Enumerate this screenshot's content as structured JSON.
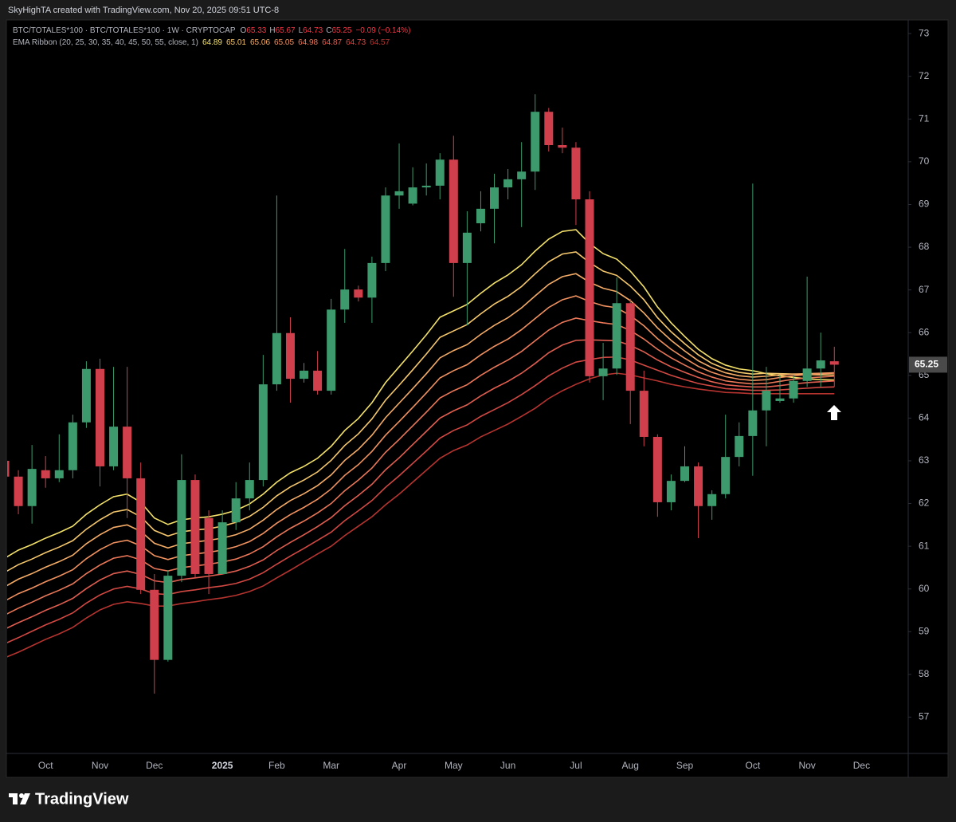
{
  "chart_data": {
    "type": "candlestick",
    "attribution": "SkyHighTA created with TradingView.com, Nov 20, 2025 09:51 UTC-8",
    "symbol": "BTC/TOTALES*100 · BTC/TOTALES*100 · 1W · CRYPTOCAP",
    "ohlc_labels": [
      "O",
      "H",
      "L",
      "C"
    ],
    "change": "−0.09 (−0.14%)",
    "branding": "TradingView",
    "up_color": "#3c9a6c",
    "down_color": "#d0404c",
    "ylim": [
      56.15,
      73.32
    ],
    "yticks": [
      57,
      58,
      59,
      60,
      61,
      62,
      63,
      64,
      65,
      66,
      67,
      68,
      69,
      70,
      71,
      72,
      73
    ],
    "categories": [
      null,
      null,
      null,
      "Oct",
      null,
      null,
      null,
      "Nov",
      null,
      null,
      null,
      "Dec",
      null,
      null,
      null,
      null,
      "2025",
      null,
      null,
      null,
      "Feb",
      null,
      null,
      null,
      "Mar",
      null,
      null,
      null,
      null,
      "Apr",
      null,
      null,
      null,
      "May",
      null,
      null,
      null,
      "Jun",
      null,
      null,
      null,
      null,
      "Jul",
      null,
      null,
      null,
      "Aug",
      null,
      null,
      null,
      "Sep",
      null,
      null,
      null,
      null,
      "Oct",
      null,
      null,
      null,
      "Nov",
      null,
      null,
      null,
      "Dec"
    ],
    "open": [
      63.0,
      62.63,
      61.94,
      62.78,
      62.59,
      62.78,
      63.9,
      65.15,
      62.87,
      63.8,
      62.59,
      59.98,
      58.34,
      60.31,
      62.55,
      61.66,
      60.35,
      61.56,
      62.12,
      62.55,
      64.79,
      65.99,
      64.92,
      65.11,
      64.64,
      66.54,
      67.01,
      66.82,
      67.63,
      69.21,
      69.02,
      69.4,
      69.44,
      70.05,
      67.63,
      68.56,
      68.9,
      69.4,
      69.59,
      69.77,
      71.17,
      70.39,
      70.33,
      69.12,
      64.98,
      65.16,
      66.69,
      64.64,
      63.56,
      62.03,
      62.53,
      62.87,
      61.94,
      62.22,
      63.09,
      63.58,
      64.18,
      64.4,
      64.46,
      64.87,
      65.16,
      65.33,
      null,
      null
    ],
    "high": [
      63.1,
      62.78,
      63.37,
      63.11,
      63.62,
      64.08,
      65.33,
      65.39,
      65.2,
      65.2,
      62.96,
      60.35,
      60.44,
      63.15,
      62.68,
      61.84,
      61.84,
      62.5,
      62.96,
      65.48,
      69.21,
      66.36,
      65.29,
      65.57,
      66.79,
      67.96,
      67.1,
      67.78,
      69.4,
      70.43,
      69.87,
      69.96,
      70.2,
      70.61,
      68.84,
      69.31,
      69.72,
      69.83,
      70.46,
      71.58,
      71.26,
      70.8,
      70.46,
      69.31,
      65.76,
      67.29,
      66.79,
      65.11,
      63.62,
      62.68,
      63.34,
      62.96,
      62.31,
      64.08,
      63.9,
      69.49,
      65.2,
      65.01,
      65.01,
      67.31,
      66.0,
      65.67,
      null,
      null
    ],
    "low": [
      62.5,
      61.75,
      61.53,
      62.37,
      62.5,
      62.59,
      63.77,
      62.4,
      62.78,
      61.66,
      59.88,
      57.55,
      58.3,
      60.16,
      60.26,
      59.88,
      60.35,
      61.38,
      61.84,
      62.4,
      64.64,
      64.36,
      64.83,
      64.55,
      64.55,
      66.23,
      66.73,
      66.23,
      67.44,
      68.9,
      68.98,
      69.21,
      69.12,
      66.84,
      66.17,
      68.37,
      68.09,
      69.12,
      68.47,
      69.34,
      70.24,
      70.2,
      68.52,
      64.83,
      64.42,
      65.01,
      63.86,
      63.34,
      61.69,
      61.84,
      62.5,
      61.19,
      61.62,
      62.12,
      62.87,
      62.65,
      63.34,
      64.36,
      64.36,
      64.73,
      64.73,
      64.73,
      null,
      null
    ],
    "close": [
      62.63,
      61.94,
      62.81,
      62.59,
      62.78,
      63.9,
      65.15,
      62.87,
      63.8,
      62.59,
      59.98,
      58.34,
      60.31,
      62.55,
      60.35,
      60.35,
      61.56,
      62.12,
      62.55,
      64.79,
      65.99,
      64.92,
      65.11,
      64.64,
      66.54,
      67.01,
      66.82,
      67.63,
      69.21,
      69.31,
      69.4,
      69.44,
      70.05,
      67.63,
      68.34,
      68.9,
      69.4,
      69.59,
      69.77,
      71.17,
      70.39,
      70.33,
      69.12,
      64.98,
      65.16,
      66.69,
      64.64,
      63.56,
      62.03,
      62.53,
      62.87,
      61.94,
      62.22,
      63.09,
      63.58,
      64.18,
      64.64,
      64.46,
      64.87,
      65.16,
      65.35,
      65.25,
      null,
      null
    ],
    "ribbon": {
      "label": "EMA Ribbon (20, 25, 30, 35, 40, 45, 50, 55, close, 1)",
      "series": [
        {
          "color": "#f3e16a",
          "values": [
            60.72,
            60.91,
            61.04,
            61.19,
            61.32,
            61.47,
            61.75,
            61.97,
            62.16,
            62.22,
            62.03,
            61.66,
            61.51,
            61.62,
            61.66,
            61.69,
            61.75,
            61.84,
            61.99,
            62.22,
            62.5,
            62.72,
            62.87,
            63.06,
            63.34,
            63.71,
            63.99,
            64.36,
            64.83,
            65.2,
            65.57,
            65.95,
            66.36,
            66.51,
            66.66,
            66.92,
            67.16,
            67.35,
            67.59,
            67.91,
            68.19,
            68.37,
            68.41,
            68.09,
            67.85,
            67.72,
            67.44,
            67.07,
            66.6,
            66.23,
            65.91,
            65.61,
            65.39,
            65.24,
            65.15,
            65.11,
            65.04,
            64.99,
            64.95,
            64.92,
            64.9,
            64.89,
            null,
            null
          ]
        },
        {
          "color": "#f6c86c",
          "values": [
            60.39,
            60.57,
            60.7,
            60.85,
            60.98,
            61.13,
            61.4,
            61.62,
            61.8,
            61.86,
            61.69,
            61.37,
            61.24,
            61.34,
            61.38,
            61.41,
            61.47,
            61.56,
            61.7,
            61.91,
            62.18,
            62.39,
            62.55,
            62.74,
            63.01,
            63.36,
            63.63,
            63.98,
            64.42,
            64.77,
            65.13,
            65.5,
            65.89,
            66.04,
            66.19,
            66.44,
            66.67,
            66.85,
            67.08,
            67.38,
            67.66,
            67.84,
            67.89,
            67.64,
            67.44,
            67.34,
            67.09,
            66.77,
            66.35,
            66.02,
            65.74,
            65.48,
            65.28,
            65.15,
            65.07,
            65.03,
            65.05,
            65.04,
            65.03,
            65.02,
            65.01,
            65.01,
            null,
            null
          ]
        },
        {
          "color": "#f5ac66",
          "values": [
            60.05,
            60.23,
            60.36,
            60.51,
            60.64,
            60.79,
            61.06,
            61.27,
            61.44,
            61.5,
            61.35,
            61.07,
            60.96,
            61.06,
            61.1,
            61.14,
            61.19,
            61.27,
            61.4,
            61.61,
            61.86,
            62.07,
            62.23,
            62.42,
            62.67,
            63.01,
            63.27,
            63.6,
            64.01,
            64.35,
            64.69,
            65.04,
            65.41,
            65.58,
            65.72,
            65.96,
            66.17,
            66.35,
            66.58,
            66.86,
            67.13,
            67.31,
            67.38,
            67.18,
            67.04,
            66.96,
            66.75,
            66.46,
            66.11,
            65.82,
            65.57,
            65.34,
            65.18,
            65.06,
            64.99,
            64.96,
            64.98,
            65.01,
            65.03,
            65.04,
            65.05,
            65.06,
            null,
            null
          ]
        },
        {
          "color": "#f1915f",
          "values": [
            59.72,
            59.89,
            60.02,
            60.17,
            60.3,
            60.45,
            60.71,
            60.92,
            61.08,
            61.14,
            61.01,
            60.78,
            60.69,
            60.78,
            60.82,
            60.86,
            60.91,
            60.99,
            61.11,
            61.3,
            61.54,
            61.74,
            61.91,
            62.1,
            62.34,
            62.66,
            62.91,
            63.22,
            63.6,
            63.92,
            64.25,
            64.59,
            64.94,
            65.11,
            65.25,
            65.48,
            65.68,
            65.85,
            66.07,
            66.33,
            66.59,
            66.77,
            66.86,
            66.73,
            66.63,
            66.58,
            66.4,
            66.16,
            65.86,
            65.61,
            65.4,
            65.21,
            65.07,
            64.97,
            64.91,
            64.88,
            64.9,
            64.95,
            64.99,
            65.02,
            65.04,
            65.05,
            null,
            null
          ]
        },
        {
          "color": "#ea7758",
          "values": [
            59.39,
            59.55,
            59.69,
            59.84,
            59.97,
            60.12,
            60.36,
            60.56,
            60.72,
            60.78,
            60.68,
            60.48,
            60.42,
            60.5,
            60.54,
            60.58,
            60.63,
            60.7,
            60.82,
            60.99,
            61.22,
            61.42,
            61.59,
            61.78,
            62.0,
            62.3,
            62.55,
            62.83,
            63.2,
            63.5,
            63.82,
            64.14,
            64.47,
            64.64,
            64.78,
            65.0,
            65.19,
            65.36,
            65.56,
            65.81,
            66.06,
            66.24,
            66.34,
            66.28,
            66.23,
            66.19,
            66.05,
            65.85,
            65.61,
            65.41,
            65.24,
            65.08,
            64.96,
            64.87,
            64.83,
            64.8,
            64.81,
            64.86,
            64.91,
            64.94,
            64.96,
            64.98,
            null,
            null
          ]
        },
        {
          "color": "#e05e50",
          "values": [
            59.06,
            59.21,
            59.35,
            59.5,
            59.63,
            59.78,
            60.01,
            60.21,
            60.36,
            60.42,
            60.34,
            60.19,
            60.15,
            60.22,
            60.26,
            60.3,
            60.35,
            60.42,
            60.53,
            60.68,
            60.9,
            61.09,
            61.27,
            61.46,
            61.67,
            61.95,
            62.19,
            62.45,
            62.79,
            63.07,
            63.38,
            63.69,
            64.0,
            64.17,
            64.31,
            64.52,
            64.7,
            64.86,
            65.05,
            65.28,
            65.53,
            65.71,
            65.82,
            65.83,
            65.82,
            65.81,
            65.7,
            65.55,
            65.36,
            65.2,
            65.07,
            64.95,
            64.85,
            64.78,
            64.75,
            64.73,
            64.73,
            64.76,
            64.8,
            64.83,
            64.85,
            64.87,
            null,
            null
          ]
        },
        {
          "color": "#d24843",
          "values": [
            58.72,
            58.86,
            59.01,
            59.16,
            59.29,
            59.44,
            59.67,
            59.86,
            60.0,
            60.06,
            60.0,
            59.89,
            59.87,
            59.94,
            59.98,
            60.03,
            60.07,
            60.13,
            60.23,
            60.38,
            60.58,
            60.77,
            60.95,
            61.14,
            61.33,
            61.6,
            61.83,
            62.07,
            62.38,
            62.65,
            62.94,
            63.23,
            63.53,
            63.71,
            63.84,
            64.04,
            64.2,
            64.36,
            64.55,
            64.76,
            64.99,
            65.17,
            65.31,
            65.37,
            65.42,
            65.43,
            65.36,
            65.24,
            65.12,
            65.0,
            64.9,
            64.81,
            64.75,
            64.69,
            64.67,
            64.65,
            64.65,
            64.66,
            64.68,
            64.7,
            64.72,
            64.73,
            null,
            null
          ]
        },
        {
          "color": "#b63430",
          "values": [
            58.39,
            58.52,
            58.67,
            58.82,
            58.95,
            59.1,
            59.32,
            59.51,
            59.64,
            59.7,
            59.66,
            59.6,
            59.6,
            59.66,
            59.7,
            59.75,
            59.79,
            59.85,
            59.94,
            60.07,
            60.26,
            60.44,
            60.63,
            60.82,
            61.0,
            61.25,
            61.47,
            61.69,
            61.97,
            62.22,
            62.5,
            62.78,
            63.06,
            63.24,
            63.37,
            63.56,
            63.71,
            63.86,
            64.04,
            64.23,
            64.46,
            64.64,
            64.79,
            64.92,
            65.01,
            65.05,
            65.01,
            64.94,
            64.87,
            64.79,
            64.73,
            64.68,
            64.64,
            64.6,
            64.59,
            64.57,
            64.57,
            64.57,
            64.57,
            64.57,
            64.57,
            64.57,
            null,
            null
          ]
        }
      ]
    }
  }
}
